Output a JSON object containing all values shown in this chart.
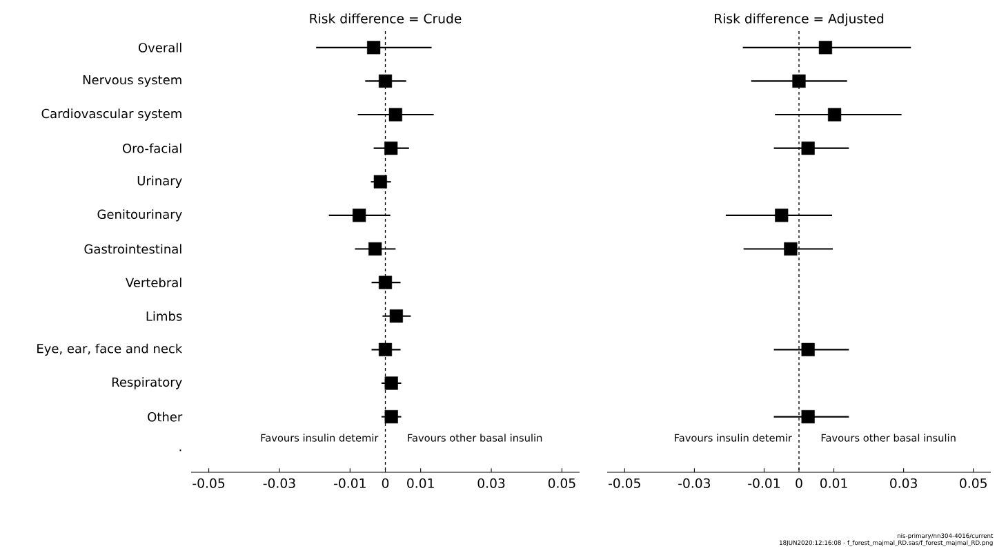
{
  "chart_data": [
    {
      "type": "scatter",
      "orientation": "horizontal",
      "title": "Risk difference = Crude",
      "marker": "square",
      "color": "#000000",
      "categories": [
        "Overall",
        "Nervous system",
        "Cardiovascular system",
        "Oro-facial",
        "Urinary",
        "Genitourinary",
        "Gastrointestinal",
        "Vertebral",
        "Limbs",
        "Eye, ear, face and neck",
        "Respiratory",
        "Other",
        "."
      ],
      "values": [
        -0.0033,
        0.0,
        0.0029,
        0.0016,
        -0.0014,
        -0.0074,
        -0.0029,
        0.0,
        0.0031,
        0.0,
        0.0017,
        0.0017,
        null
      ],
      "errors": [
        [
          -0.0196,
          0.0131
        ],
        [
          -0.0057,
          0.0059
        ],
        [
          -0.0078,
          0.0137
        ],
        [
          -0.0033,
          0.0067
        ],
        [
          -0.0041,
          0.0016
        ],
        [
          -0.016,
          0.0014
        ],
        [
          -0.0086,
          0.0029
        ],
        [
          -0.0039,
          0.0043
        ],
        [
          -0.0008,
          0.0072
        ],
        [
          -0.0039,
          0.0043
        ],
        [
          -0.0011,
          0.0045
        ],
        [
          -0.0011,
          0.0045
        ],
        null
      ],
      "xlim": [
        -0.055,
        0.055
      ],
      "xticks": [
        -0.05,
        -0.03,
        -0.01,
        0,
        0.01,
        0.03,
        0.05
      ],
      "ref_lines": [
        {
          "axis": "x",
          "value": 0,
          "line_style": "dashed"
        }
      ],
      "annotations": [
        "Favours insulin detemir",
        "Favours other basal insulin"
      ]
    },
    {
      "type": "scatter",
      "orientation": "horizontal",
      "title": "Risk difference = Adjusted",
      "marker": "square",
      "color": "#000000",
      "categories": [
        null,
        null,
        null,
        null,
        null,
        null,
        null,
        null,
        null,
        null,
        null,
        null,
        null
      ],
      "values": [
        0.0076,
        0.0,
        0.0102,
        0.0026,
        null,
        -0.005,
        -0.0024,
        null,
        null,
        0.0026,
        null,
        0.0026,
        null
      ],
      "errors": [
        [
          -0.0161,
          0.0321
        ],
        [
          -0.0137,
          0.0138
        ],
        [
          -0.0069,
          0.0294
        ],
        [
          -0.0072,
          0.0143
        ],
        null,
        [
          -0.021,
          0.0095
        ],
        [
          -0.0159,
          0.0097
        ],
        null,
        null,
        [
          -0.0072,
          0.0143
        ],
        null,
        [
          -0.0072,
          0.0143
        ],
        null
      ],
      "xlim": [
        -0.055,
        0.055
      ],
      "xticks": [
        -0.05,
        -0.03,
        -0.01,
        0,
        0.01,
        0.03,
        0.05
      ],
      "tick_labels": "x",
      "ref_lines": [
        {
          "axis": "x",
          "value": 0,
          "line_style": "dashed"
        }
      ],
      "annotations": [
        "Favours insulin detemir",
        "Favours other basal insulin",
        "nis-primary/nn304-4016/current",
        "18JUN2020:12:16:08 - f_forest_majmal_RD.sas/f_forest_majmal_RD.png"
      ]
    }
  ]
}
